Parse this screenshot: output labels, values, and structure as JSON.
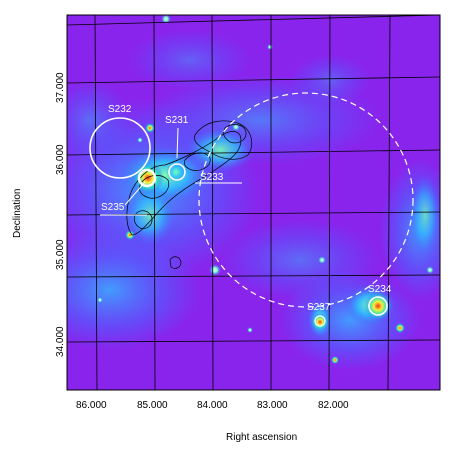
{
  "axes": {
    "xlabel": "Right ascension",
    "ylabel": "Declination",
    "x_ticks": [
      "86.000",
      "85.000",
      "84.000",
      "83.000",
      "82.000"
    ],
    "y_ticks": [
      "37.000",
      "36.000",
      "35.000",
      "34.000"
    ]
  },
  "regions": [
    {
      "id": "s232",
      "label": "S232"
    },
    {
      "id": "s231",
      "label": "S231"
    },
    {
      "id": "s233",
      "label": "S233"
    },
    {
      "id": "s235",
      "label": "S235"
    },
    {
      "id": "s237",
      "label": "S237"
    },
    {
      "id": "s234",
      "label": "S234"
    }
  ],
  "colors": {
    "background_map": "#7a24f0",
    "emission_low": "#3a64ff",
    "emission_mid": "#33d6c8",
    "emission_high": "#d8e83a",
    "emission_peak": "#ff3a2a",
    "overlay": "#ffffff",
    "contour": "#000000"
  }
}
